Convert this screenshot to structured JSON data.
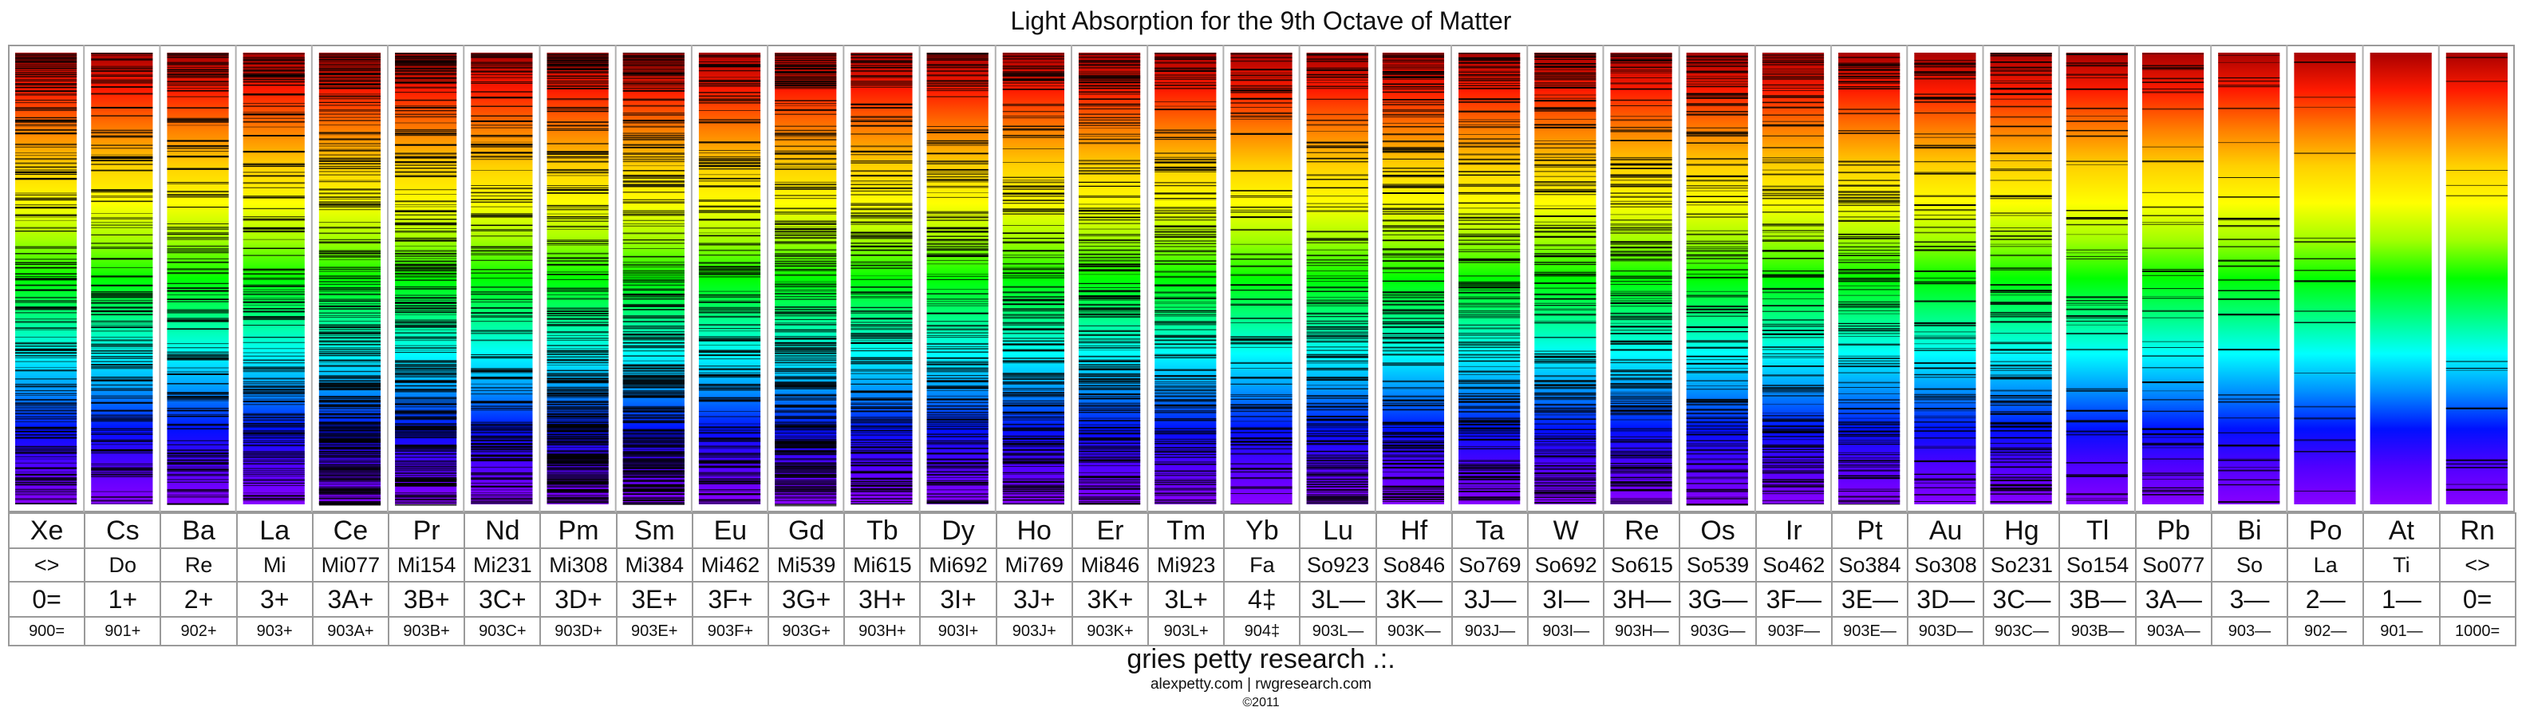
{
  "title": "Light Absorption for the 9th Octave of Matter",
  "footer": {
    "credit": "gries petty research .:.",
    "sites": "alexpetty.com | rwgresearch.com",
    "copyright": "©2011"
  },
  "chart_data": {
    "type": "heatmap",
    "title": "Light Absorption for the 9th Octave of Matter",
    "description": "Per-element absorption spectra; each column is a rainbow spectrum strip (red top to violet bottom) crossed by dark absorption lines.",
    "spectrum_colors": [
      "#a80000",
      "#ff1a00",
      "#ff7a00",
      "#ffd000",
      "#ffff00",
      "#a0ff00",
      "#00ff00",
      "#00ff80",
      "#00ffff",
      "#0090ff",
      "#0010ff",
      "#5000ff",
      "#8800ff"
    ],
    "line_color": "#000000",
    "elements": [
      {
        "symbol": "Xe",
        "note": "<>",
        "value": "0=",
        "code": "900=",
        "line_density": 0.5
      },
      {
        "symbol": "Cs",
        "note": "Do",
        "value": "1+",
        "code": "901+",
        "line_density": 0.35
      },
      {
        "symbol": "Ba",
        "note": "Re",
        "value": "2+",
        "code": "902+",
        "line_density": 0.4
      },
      {
        "symbol": "La",
        "note": "Mi",
        "value": "3+",
        "code": "903+",
        "line_density": 0.45
      },
      {
        "symbol": "Ce",
        "note": "Mi077",
        "value": "3A+",
        "code": "903A+",
        "line_density": 0.6
      },
      {
        "symbol": "Pr",
        "note": "Mi154",
        "value": "3B+",
        "code": "903B+",
        "line_density": 0.55
      },
      {
        "symbol": "Nd",
        "note": "Mi231",
        "value": "3C+",
        "code": "903C+",
        "line_density": 0.45
      },
      {
        "symbol": "Pm",
        "note": "Mi308",
        "value": "3D+",
        "code": "903D+",
        "line_density": 0.6
      },
      {
        "symbol": "Sm",
        "note": "Mi384",
        "value": "3E+",
        "code": "903E+",
        "line_density": 0.6
      },
      {
        "symbol": "Eu",
        "note": "Mi462",
        "value": "3F+",
        "code": "903F+",
        "line_density": 0.45
      },
      {
        "symbol": "Gd",
        "note": "Mi539",
        "value": "3G+",
        "code": "903G+",
        "line_density": 0.6
      },
      {
        "symbol": "Tb",
        "note": "Mi615",
        "value": "3H+",
        "code": "903H+",
        "line_density": 0.5
      },
      {
        "symbol": "Dy",
        "note": "Mi692",
        "value": "3I+",
        "code": "903I+",
        "line_density": 0.5
      },
      {
        "symbol": "Ho",
        "note": "Mi769",
        "value": "3J+",
        "code": "903J+",
        "line_density": 0.5
      },
      {
        "symbol": "Er",
        "note": "Mi846",
        "value": "3K+",
        "code": "903K+",
        "line_density": 0.5
      },
      {
        "symbol": "Tm",
        "note": "Mi923",
        "value": "3L+",
        "code": "903L+",
        "line_density": 0.45
      },
      {
        "symbol": "Yb",
        "note": "Fa",
        "value": "4‡",
        "code": "904‡",
        "line_density": 0.3
      },
      {
        "symbol": "Lu",
        "note": "So923",
        "value": "3L—",
        "code": "903L—",
        "line_density": 0.45
      },
      {
        "symbol": "Hf",
        "note": "So846",
        "value": "3K—",
        "code": "903K—",
        "line_density": 0.45
      },
      {
        "symbol": "Ta",
        "note": "So769",
        "value": "3J—",
        "code": "903J—",
        "line_density": 0.45
      },
      {
        "symbol": "W",
        "note": "So692",
        "value": "3I—",
        "code": "903I—",
        "line_density": 0.45
      },
      {
        "symbol": "Re",
        "note": "So615",
        "value": "3H—",
        "code": "903H—",
        "line_density": 0.45
      },
      {
        "symbol": "Os",
        "note": "So539",
        "value": "3G—",
        "code": "903G—",
        "line_density": 0.4
      },
      {
        "symbol": "Ir",
        "note": "So462",
        "value": "3F—",
        "code": "903F—",
        "line_density": 0.4
      },
      {
        "symbol": "Pt",
        "note": "So384",
        "value": "3E—",
        "code": "903E—",
        "line_density": 0.35
      },
      {
        "symbol": "Au",
        "note": "So308",
        "value": "3D—",
        "code": "903D—",
        "line_density": 0.3
      },
      {
        "symbol": "Hg",
        "note": "So231",
        "value": "3C—",
        "code": "903C—",
        "line_density": 0.3
      },
      {
        "symbol": "Tl",
        "note": "So154",
        "value": "3B—",
        "code": "903B—",
        "line_density": 0.15
      },
      {
        "symbol": "Pb",
        "note": "So077",
        "value": "3A—",
        "code": "903A—",
        "line_density": 0.2
      },
      {
        "symbol": "Bi",
        "note": "So",
        "value": "3—",
        "code": "903—",
        "line_density": 0.12
      },
      {
        "symbol": "Po",
        "note": "La",
        "value": "2—",
        "code": "902—",
        "line_density": 0.06
      },
      {
        "symbol": "At",
        "note": "Ti",
        "value": "1—",
        "code": "901—",
        "line_density": 0.0
      },
      {
        "symbol": "Rn",
        "note": "<>",
        "value": "0=",
        "code": "1000=",
        "line_density": 0.04
      }
    ]
  }
}
